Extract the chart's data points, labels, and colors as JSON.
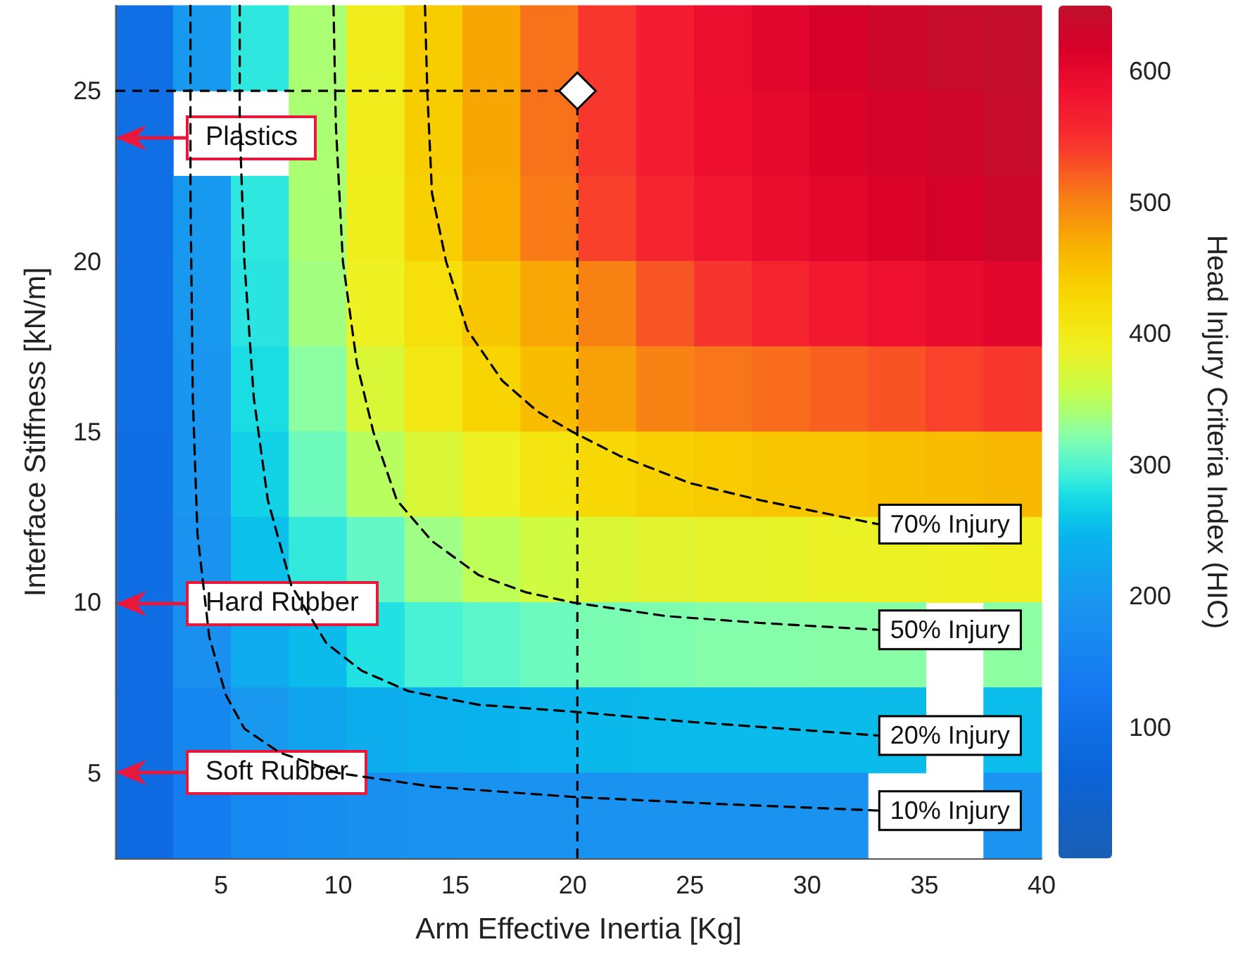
{
  "chart_data": [
    {
      "type": "heatmap",
      "clabel": "Head Injury Criteria Index (HIC)",
      "categories": [
        null,
        null,
        null,
        null,
        null,
        null,
        null,
        null,
        null,
        null,
        null,
        null,
        null,
        null,
        null,
        null
      ],
      "y_categories": [
        null,
        null,
        null,
        null,
        null,
        null,
        null,
        null,
        null,
        null
      ],
      "clim": [
        0,
        650
      ],
      "cticks": [
        100,
        200,
        300,
        400,
        500,
        600
      ],
      "cells": [
        [
          100,
          200,
          285,
          340,
          395,
          440,
          475,
          510,
          545,
          570,
          590,
          605,
          620,
          632,
          640,
          645
        ],
        [
          100,
          null,
          null,
          340,
          395,
          440,
          475,
          510,
          545,
          570,
          588,
          600,
          612,
          622,
          630,
          640
        ],
        [
          100,
          200,
          285,
          340,
          394,
          438,
          472,
          505,
          538,
          560,
          578,
          592,
          603,
          612,
          620,
          632
        ],
        [
          100,
          199,
          283,
          336,
          388,
          417,
          446,
          474,
          501,
          526,
          546,
          562,
          575,
          586,
          596,
          605
        ],
        [
          100,
          197,
          277,
          325,
          371,
          405,
          431,
          455,
          479,
          500,
          508,
          513,
          520,
          527,
          536,
          545
        ],
        [
          99,
          194,
          269,
          312,
          348,
          371,
          388,
          410,
          427,
          436,
          442,
          446,
          449,
          452,
          455,
          460
        ],
        [
          98,
          189,
          255,
          287,
          307,
          334,
          351,
          363,
          372,
          378,
          382,
          383,
          385,
          387,
          388,
          390
        ],
        [
          96,
          180,
          231,
          251,
          280,
          296,
          304,
          311,
          317,
          319,
          321,
          322,
          323,
          323,
          null,
          325
        ],
        [
          92,
          163,
          199,
          220,
          233,
          240,
          244,
          246,
          249,
          250,
          251,
          251,
          251,
          252,
          null,
          253
        ],
        [
          86,
          139,
          165,
          174,
          180,
          183,
          185,
          186,
          187,
          188,
          188,
          188,
          189,
          null,
          null,
          190
        ]
      ],
      "annotations": [
        "Plastics",
        "Hard Rubber",
        "Soft Rubber"
      ]
    },
    {
      "type": "line",
      "xlabel": "Arm Effective Inertia [Kg]",
      "ylabel": "Interface Stiffness [kN/m]",
      "xlim": [
        0.5,
        40
      ],
      "ylim": [
        2.5,
        27.5
      ],
      "xticks": [
        5,
        10,
        15,
        20,
        25,
        30,
        35,
        40
      ],
      "yticks": [
        5,
        10,
        15,
        20,
        25
      ],
      "series": [
        {
          "name": "70% Injury",
          "color": "#000000",
          "line_style": "dashed",
          "marker": "none",
          "x": [
            13.7,
            13.8,
            14,
            14.6,
            15.5,
            17,
            18.5,
            20,
            22,
            25,
            28,
            33
          ],
          "values": [
            27.5,
            25,
            22,
            20,
            18,
            16.5,
            15.6,
            15,
            14.3,
            13.5,
            13,
            12.3
          ]
        },
        {
          "name": "50% Injury",
          "color": "#000000",
          "line_style": "dashed",
          "marker": "none",
          "x": [
            9.8,
            9.9,
            10.2,
            10.8,
            11.5,
            12.5,
            14,
            16,
            18,
            20,
            24,
            28,
            33
          ],
          "values": [
            27.5,
            24,
            20,
            17,
            15,
            13,
            11.8,
            10.8,
            10.3,
            10,
            9.6,
            9.4,
            9.2
          ]
        },
        {
          "name": "20% Injury",
          "color": "#000000",
          "line_style": "dashed",
          "marker": "none",
          "x": [
            5.8,
            5.8,
            6,
            6.4,
            7,
            8,
            9.5,
            11,
            13,
            16,
            20,
            25,
            33
          ],
          "values": [
            27.5,
            24,
            20,
            16,
            13,
            10.5,
            8.8,
            8,
            7.4,
            7,
            6.8,
            6.5,
            6.1
          ]
        },
        {
          "name": "10% Injury",
          "color": "#000000",
          "line_style": "dashed",
          "marker": "none",
          "x": [
            3.7,
            3.7,
            3.8,
            4,
            4.5,
            5.2,
            6,
            7.5,
            10,
            14,
            20,
            26,
            33
          ],
          "values": [
            27.5,
            22,
            16,
            12,
            9,
            7.3,
            6.3,
            5.6,
            5,
            4.6,
            4.3,
            4.1,
            3.9
          ]
        },
        {
          "type": "scatter",
          "color": "#ffffff",
          "marker": "diamond",
          "x": [
            20.2
          ],
          "values": [
            25
          ]
        }
      ],
      "ref_lines": [
        {
          "axis": "x",
          "value": 20.2,
          "color": "#000000",
          "line_style": "dashed"
        },
        {
          "axis": "y",
          "value": 25,
          "color": "#000000",
          "line_style": "dashed"
        }
      ]
    }
  ]
}
